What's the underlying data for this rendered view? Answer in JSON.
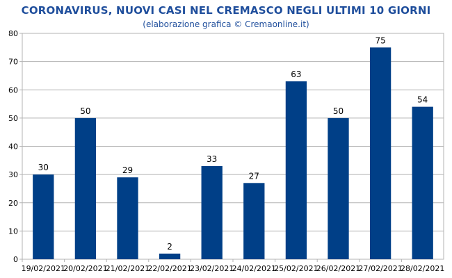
{
  "chart_data": {
    "type": "bar",
    "title": "CORONAVIRUS, NUOVI CASI NEL CREMASCO NEGLI ULTIMI 10 GIORNI",
    "subtitle": "(elaborazione grafica © Cremaonline.it)",
    "xlabel": "",
    "ylabel": "",
    "categories": [
      "19/02/2021",
      "20/02/2021",
      "21/02/2021",
      "22/02/2021",
      "23/02/2021",
      "24/02/2021",
      "25/02/2021",
      "26/02/2021",
      "27/02/2021",
      "28/02/2021"
    ],
    "values": [
      30,
      50,
      29,
      2,
      33,
      27,
      63,
      50,
      75,
      54
    ],
    "ylim": [
      0,
      80
    ],
    "yticks": [
      0,
      10,
      20,
      30,
      40,
      50,
      60,
      70,
      80
    ],
    "grid": true,
    "legend": "none",
    "bar_color": "#003f87",
    "grid_color": "#b3b3b3"
  }
}
